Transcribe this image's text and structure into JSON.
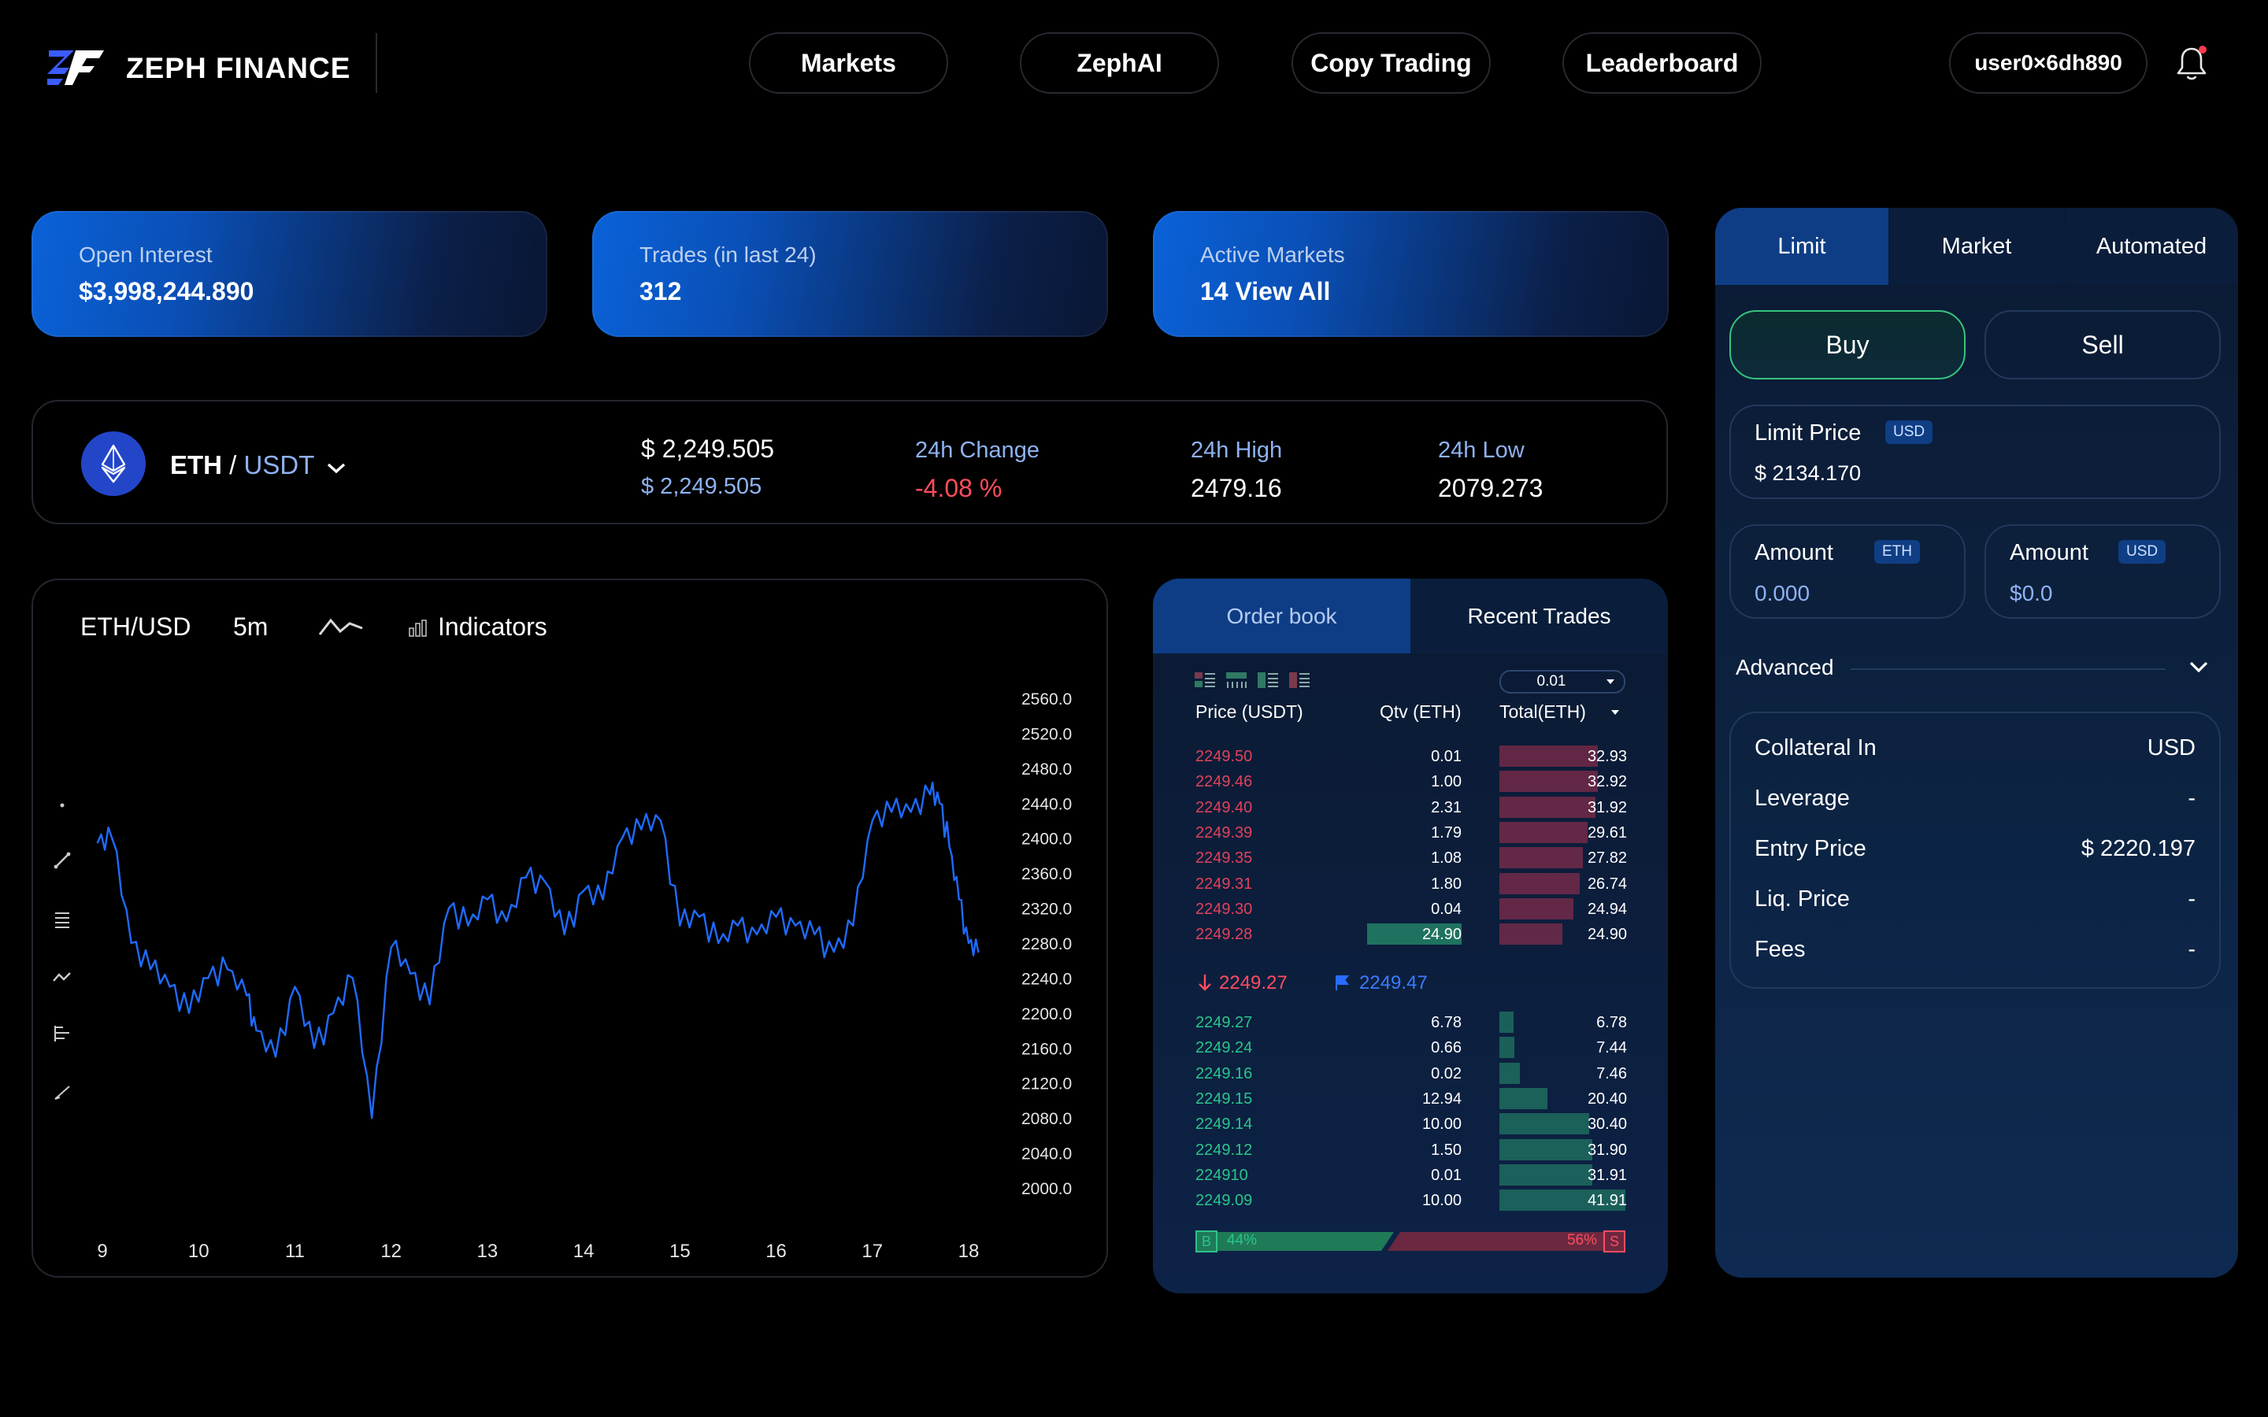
{
  "header": {
    "brand": "ZEPH FINANCE",
    "nav": [
      "Markets",
      "ZephAI",
      "Copy Trading",
      "Leaderboard"
    ],
    "user": "user0×6dh890",
    "bell_icon": "bell-icon"
  },
  "stats": [
    {
      "label": "Open Interest",
      "value": "$3,998,244.890"
    },
    {
      "label": "Trades (in last 24)",
      "value": "312"
    },
    {
      "label": "Active Markets",
      "value": "14 View All"
    }
  ],
  "ticker": {
    "base": "ETH",
    "sep": "/",
    "quote": "USDT",
    "price": "$ 2,249.505",
    "price_sub": "$ 2,249.505",
    "change_label": "24h Change",
    "change_value": "-4.08 %",
    "high_label": "24h High",
    "high_value": "2479.16",
    "low_label": "24h Low",
    "low_value": "2079.273"
  },
  "chart": {
    "symbol": "ETH/USD",
    "interval": "5m",
    "indicators_label": "Indicators"
  },
  "chart_data": {
    "type": "line",
    "x_ticks": [
      "9",
      "10",
      "11",
      "12",
      "13",
      "14",
      "15",
      "16",
      "17",
      "18"
    ],
    "y_ticks": [
      "2560.0",
      "2520.0",
      "2480.0",
      "2440.0",
      "2400.0",
      "2360.0",
      "2320.0",
      "2280.0",
      "2240.0",
      "2200.0",
      "2160.0",
      "2120.0",
      "2080.0",
      "2040.0",
      "2000.0"
    ],
    "ylim": [
      2000,
      2560
    ],
    "series": [
      {
        "color": "#1f6bff",
        "x": [
          8.95,
          9.1,
          9.3,
          9.5,
          9.7,
          9.9,
          10.1,
          10.3,
          10.5,
          10.6,
          10.8,
          11.0,
          11.2,
          11.4,
          11.6,
          11.8,
          12.0,
          12.2,
          12.4,
          12.6,
          12.8,
          13.0,
          13.2,
          13.4,
          13.6,
          13.8,
          14.0,
          14.2,
          14.4,
          14.6,
          14.8,
          15.0,
          15.2,
          15.4,
          15.6,
          15.8,
          16.0,
          16.2,
          16.4,
          16.6,
          16.8,
          17.0,
          17.2,
          17.4,
          17.6,
          17.7,
          17.8,
          17.9,
          18.0,
          18.1
        ],
        "y": [
          2395,
          2400,
          2280,
          2250,
          2230,
          2200,
          2240,
          2250,
          2220,
          2180,
          2150,
          2230,
          2160,
          2200,
          2240,
          2080,
          2275,
          2245,
          2210,
          2320,
          2300,
          2330,
          2305,
          2355,
          2350,
          2290,
          2340,
          2330,
          2400,
          2410,
          2420,
          2300,
          2310,
          2280,
          2300,
          2290,
          2310,
          2300,
          2290,
          2270,
          2300,
          2420,
          2430,
          2430,
          2450,
          2440,
          2390,
          2330,
          2280,
          2270
        ]
      }
    ]
  },
  "orderbook": {
    "tab_orderbook": "Order book",
    "tab_trades": "Recent Trades",
    "precision": "0.01",
    "col_price": "Price (USDT)",
    "col_qty": "Qtv (ETH)",
    "col_total": "Total(ETH)",
    "asks": [
      {
        "price": "2249.50",
        "qty": "0.01",
        "total": "32.93",
        "depth": 0.78
      },
      {
        "price": "2249.46",
        "qty": "1.00",
        "total": "32.92",
        "depth": 0.78
      },
      {
        "price": "2249.40",
        "qty": "2.31",
        "total": "31.92",
        "depth": 0.76
      },
      {
        "price": "2249.39",
        "qty": "1.79",
        "total": "29.61",
        "depth": 0.7
      },
      {
        "price": "2249.35",
        "qty": "1.08",
        "total": "27.82",
        "depth": 0.66
      },
      {
        "price": "2249.31",
        "qty": "1.80",
        "total": "26.74",
        "depth": 0.64
      },
      {
        "price": "2249.30",
        "qty": "0.04",
        "total": "24.94",
        "depth": 0.59
      },
      {
        "price": "2249.28",
        "qty": "24.90",
        "total": "24.90",
        "depth": 0.5,
        "qty_bar": 0.26
      }
    ],
    "last_price": "2249.27",
    "mark_price": "2249.47",
    "bids": [
      {
        "price": "2249.27",
        "qty": "6.78",
        "total": "6.78",
        "depth": 0.11
      },
      {
        "price": "2249.24",
        "qty": "0.66",
        "total": "7.44",
        "depth": 0.12
      },
      {
        "price": "2249.16",
        "qty": "0.02",
        "total": "7.46",
        "depth": 0.16
      },
      {
        "price": "2249.15",
        "qty": "12.94",
        "total": "20.40",
        "depth": 0.38
      },
      {
        "price": "2249.14",
        "qty": "10.00",
        "total": "30.40",
        "depth": 0.71
      },
      {
        "price": "2249.12",
        "qty": "1.50",
        "total": "31.90",
        "depth": 0.74
      },
      {
        "price": "224910",
        "qty": "0.01",
        "total": "31.91",
        "depth": 0.74
      },
      {
        "price": "2249.09",
        "qty": "10.00",
        "total": "41.91",
        "depth": 1.0
      }
    ],
    "buy_letter": "B",
    "buy_pct": "44%",
    "sell_pct": "56%",
    "sell_letter": "S"
  },
  "order_form": {
    "tabs": [
      "Limit",
      "Market",
      "Automated"
    ],
    "buy": "Buy",
    "sell": "Sell",
    "limit_price_label": "Limit Price",
    "limit_price_unit": "USD",
    "limit_price_value": "$ 2134.170",
    "amount_label": "Amount",
    "amount_eth_unit": "ETH",
    "amount_eth_value": "0.000",
    "amount_usd_unit": "USD",
    "amount_usd_value": "$0.0",
    "advanced_label": "Advanced",
    "details": [
      {
        "key": "Collateral In",
        "value": "USD"
      },
      {
        "key": "Leverage",
        "value": "-"
      },
      {
        "key": "Entry Price",
        "value": "$ 2220.197"
      },
      {
        "key": "Liq. Price",
        "value": "-"
      },
      {
        "key": "Fees",
        "value": "-"
      }
    ]
  }
}
